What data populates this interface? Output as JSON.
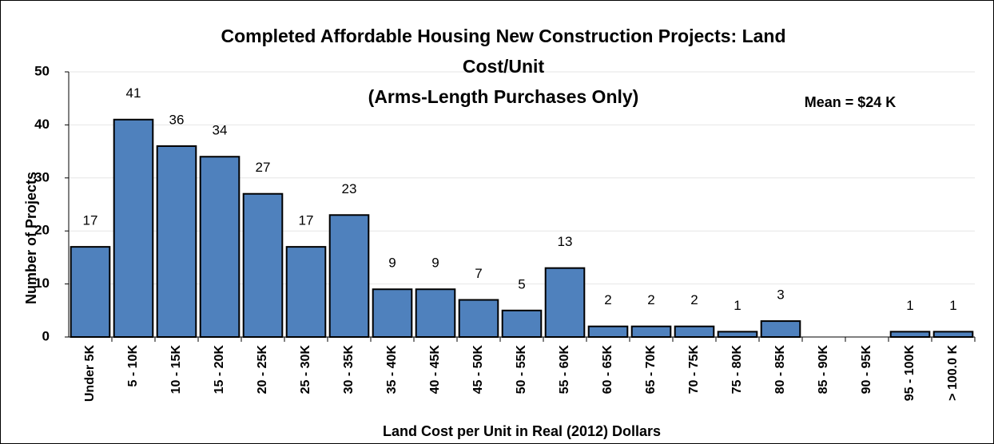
{
  "chart_data": {
    "type": "bar",
    "title": [
      "Completed Affordable Housing New Construction Projects:  Land",
      "Cost/Unit",
      "(Arms-Length Purchases Only)"
    ],
    "annotation": "Mean = $24 K",
    "x_label": "Land Cost per Unit in Real (2012) Dollars",
    "y_label": "Number of Projects",
    "categories": [
      "Under 5K",
      "5 - 10K",
      "10 - 15K",
      "15 - 20K",
      "20 - 25K",
      "25 - 30K",
      "30 - 35K",
      "35 - 40K",
      "40 - 45K",
      "45 - 50K",
      "50 - 55K",
      "55 - 60K",
      "60 - 65K",
      "65 - 70K",
      "70 - 75K",
      "75 - 80K",
      "80 - 85K",
      "85 - 90K",
      "90 - 95K",
      "95 - 100K",
      "> 100.0 K"
    ],
    "values": [
      17,
      41,
      36,
      34,
      27,
      17,
      23,
      9,
      9,
      7,
      5,
      13,
      2,
      2,
      2,
      1,
      3,
      0,
      0,
      1,
      1
    ],
    "color": "#4f81bd",
    "ylim": [
      0,
      50
    ],
    "yticks": [
      0,
      10,
      20,
      30,
      40,
      50
    ],
    "grid": true
  }
}
